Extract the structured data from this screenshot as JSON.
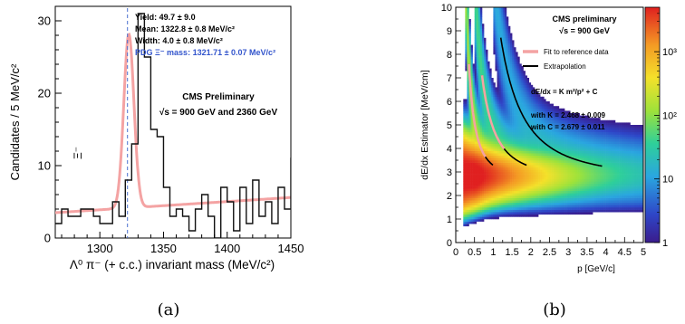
{
  "panel_a": {
    "caption": "(a)",
    "chart_data": {
      "type": "histogram",
      "ylabel": "Candidates / 5 MeV/c²",
      "xlabel": "Λ⁰ π⁻ (+ c.c.) invariant mass   (MeV/c²)",
      "xlim": [
        1265,
        1450
      ],
      "ylim": [
        0,
        32
      ],
      "xticks": [
        1300,
        1350,
        1400,
        1450
      ],
      "yticks": [
        0,
        10,
        20,
        30
      ],
      "bin_width": 5,
      "bin_edges_start": 1265,
      "counts": [
        2,
        4,
        3,
        3,
        4,
        4,
        3,
        2,
        2,
        5,
        3,
        8,
        13,
        31,
        25,
        15,
        14,
        7,
        3,
        4,
        3,
        1,
        4,
        6,
        3,
        0,
        7,
        5,
        1,
        7,
        2,
        8,
        3,
        5,
        2,
        7,
        4,
        11,
        7,
        3,
        4,
        4,
        5,
        5,
        6,
        3,
        5
      ],
      "peak_marker_x": 1321.71,
      "peak_label": "Ξ⁻",
      "stats": {
        "yield": "Yield: 49.7 ± 9.0",
        "mean": "Mean: 1322.8 ± 0.8 MeV/c²",
        "width": "Width: 4.0 ± 0.8 MeV/c²",
        "pdg": "PDG Ξ⁻ mass: 1321.71 ± 0.07 MeV/c²"
      },
      "annotation_1": "CMS Preliminary",
      "annotation_2": "√s = 900 GeV and 2360 GeV",
      "fit": {
        "background_start": 3.5,
        "background_end": 5.6,
        "gauss_amplitude": 24,
        "gauss_mean": 1322.8,
        "gauss_sigma": 4.0
      },
      "colors": {
        "hist": "#111111",
        "fit": "#f4a3a3",
        "pdg_line": "#4a6fd0",
        "pdg_text": "#3355cc"
      }
    }
  },
  "panel_b": {
    "caption": "(b)",
    "chart_data": {
      "type": "heatmap",
      "ylabel": "dE/dx Estimator [MeV/cm]",
      "xlabel": "p [GeV/c]",
      "xlim": [
        0,
        5
      ],
      "ylim": [
        0,
        10
      ],
      "xticks": [
        "0",
        "0.5",
        "1",
        "1.5",
        "2",
        "2.5",
        "3",
        "3.5",
        "4",
        "4.5",
        "5"
      ],
      "yticks": [
        "0",
        "1",
        "2",
        "3",
        "4",
        "5",
        "6",
        "7",
        "8",
        "9",
        "10"
      ],
      "colorbar": {
        "scale": "log",
        "ticks": [
          "1",
          "10",
          "10²",
          "10³"
        ],
        "range": [
          1,
          5000
        ]
      },
      "annotation_1": "CMS preliminary",
      "annotation_2": "√s = 900 GeV",
      "legend": {
        "fit": "Fit to reference data",
        "extrap": "Extrapolation"
      },
      "formula": "dE/dx = K m²/p² + C",
      "params": {
        "k": "with K = 2.468 ± 0.009",
        "c": "with C = 2.679 ± 0.011"
      },
      "K": 2.468,
      "C": 2.679,
      "band_masses": [
        0.1396,
        0.4937,
        0.9383
      ],
      "colors": {
        "fit": "#f4a3a3",
        "extrap": "#000000"
      }
    }
  }
}
